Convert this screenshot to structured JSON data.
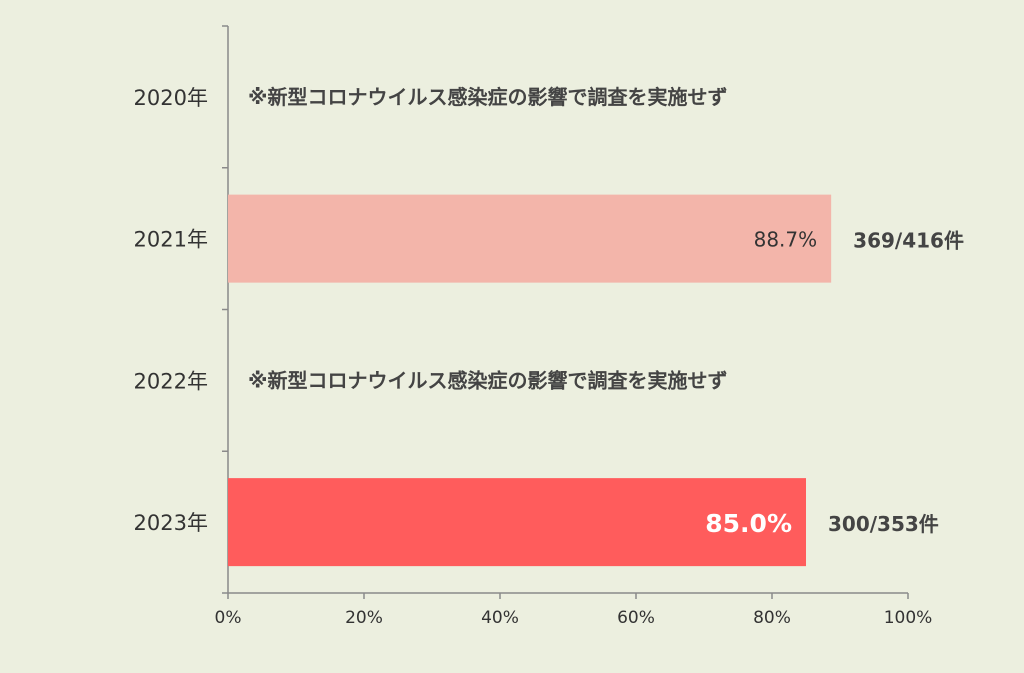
{
  "chart_data": {
    "type": "bar",
    "orientation": "horizontal",
    "categories": [
      "2020年",
      "2021年",
      "2022年",
      "2023年"
    ],
    "values": [
      null,
      88.7,
      null,
      85.0
    ],
    "value_labels": [
      "",
      "88.7%",
      "",
      "85.0%"
    ],
    "counts": [
      "",
      "369/416件",
      "",
      "300/353件"
    ],
    "notes": [
      "※新型コロナウイルス感染症の影響で調査を実施せず",
      "",
      "※新型コロナウイルス感染症の影響で調査を実施せず",
      ""
    ],
    "bar_colors": [
      "",
      "#f3b5aa",
      "",
      "#ff5c5c"
    ],
    "x_ticks": [
      "0%",
      "20%",
      "40%",
      "60%",
      "80%",
      "100%"
    ],
    "xlim": [
      0,
      100
    ],
    "grid": false,
    "legend": "none"
  }
}
